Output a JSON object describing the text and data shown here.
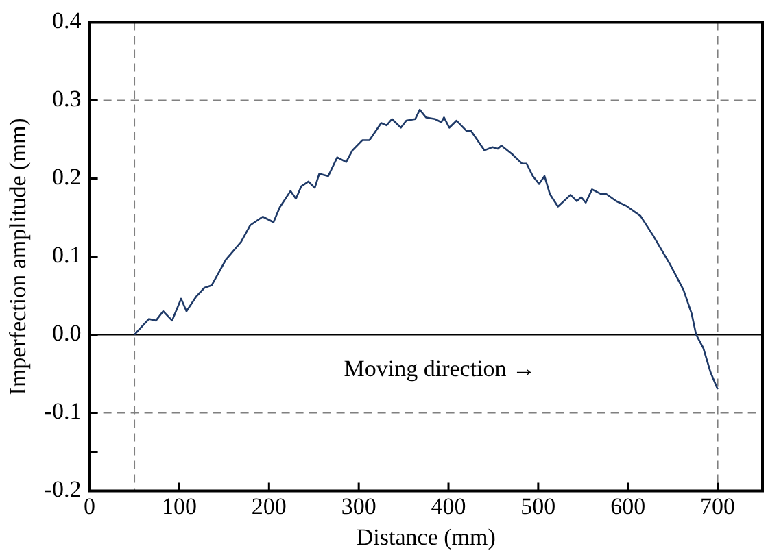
{
  "chart_data": {
    "type": "line",
    "xlabel": "Distance (mm)",
    "ylabel": "Imperfection amplitude (mm)",
    "xlim": [
      0,
      750
    ],
    "xticks": [
      0,
      100,
      200,
      300,
      400,
      500,
      600,
      700
    ],
    "ylim": [
      -0.2,
      0.4
    ],
    "yticks": [
      -0.2,
      {
        "value": -0.15,
        "label": null
      },
      -0.1,
      {
        "value": 0,
        "label": "0.0"
      },
      0.1,
      0.2,
      0.3,
      0.4
    ],
    "grid": false,
    "legend": false,
    "marker": "none",
    "line_style": "solid",
    "annotations": [
      "Moving direction →"
    ],
    "ref_lines": [
      {
        "axis": "y",
        "value": 0,
        "line_style": "solid",
        "color": "#000000"
      },
      {
        "axis": "y",
        "value": 0.3,
        "line_style": "dashed",
        "color": "#808080"
      },
      {
        "axis": "y",
        "value": -0.1,
        "line_style": "dashed",
        "color": "#808080"
      },
      {
        "axis": "x",
        "value": 50,
        "line_style": "dashed",
        "color": "#808080"
      },
      {
        "axis": "x",
        "value": 700,
        "line_style": "dashed",
        "color": "#808080"
      }
    ],
    "series": [
      {
        "color": "#1f3a68",
        "x": [
          50,
          66,
          74,
          82,
          92,
          102,
          108,
          119,
          128,
          136,
          152,
          169,
          179,
          193,
          205,
          212,
          224,
          230,
          236,
          244,
          251,
          256,
          266,
          276,
          286,
          293,
          304,
          312,
          325,
          331,
          337,
          347,
          353,
          363,
          368,
          375,
          385,
          392,
          395,
          401,
          409,
          420,
          425,
          440,
          449,
          455,
          459,
          471,
          482,
          487,
          494,
          501,
          507,
          513,
          522,
          536,
          543,
          548,
          553,
          560,
          570,
          576,
          587,
          598,
          614,
          628,
          647,
          662,
          671,
          676,
          684,
          692,
          700
        ],
        "values": [
          0,
          0.02,
          0.018,
          0.03,
          0.018,
          0.046,
          0.03,
          0.049,
          0.06,
          0.063,
          0.096,
          0.119,
          0.14,
          0.151,
          0.144,
          0.163,
          0.184,
          0.174,
          0.19,
          0.196,
          0.188,
          0.206,
          0.203,
          0.227,
          0.221,
          0.236,
          0.249,
          0.249,
          0.271,
          0.268,
          0.276,
          0.265,
          0.274,
          0.276,
          0.288,
          0.278,
          0.276,
          0.272,
          0.278,
          0.265,
          0.274,
          0.261,
          0.261,
          0.236,
          0.24,
          0.238,
          0.242,
          0.231,
          0.219,
          0.219,
          0.203,
          0.193,
          0.203,
          0.18,
          0.164,
          0.179,
          0.171,
          0.176,
          0.169,
          0.186,
          0.18,
          0.18,
          0.171,
          0.165,
          0.152,
          0.127,
          0.09,
          0.057,
          0.027,
          0,
          -0.017,
          -0.048,
          -0.07
        ]
      }
    ]
  }
}
